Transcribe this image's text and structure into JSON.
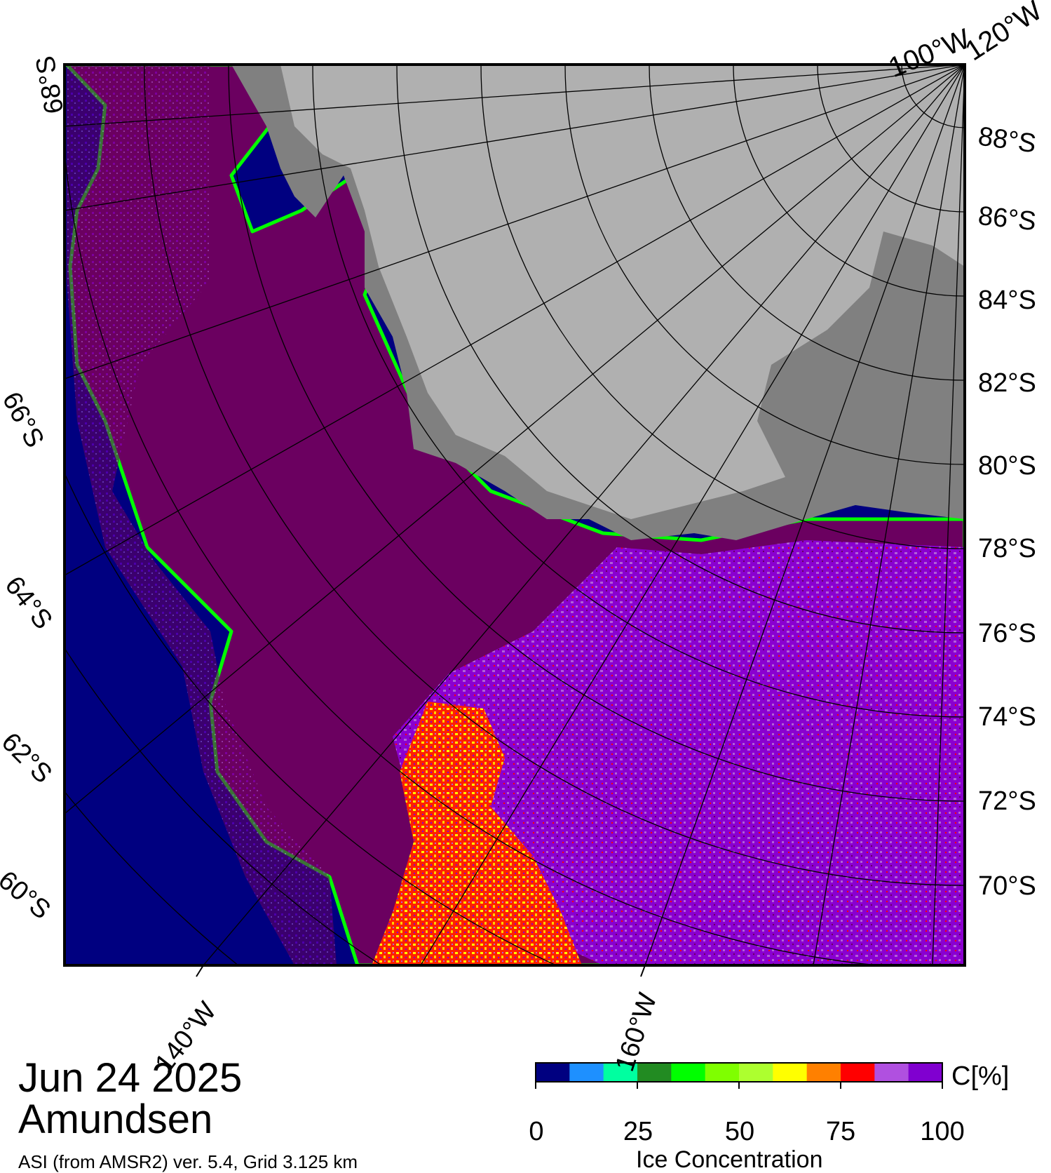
{
  "header": {
    "top_labels": [
      "100°W",
      "120°W"
    ]
  },
  "latitude_labels_right": [
    "88°S",
    "86°S",
    "84°S",
    "82°S",
    "80°S",
    "78°S",
    "76°S",
    "74°S",
    "72°S",
    "70°S"
  ],
  "latitude_labels_left": [
    "68°S",
    "66°S",
    "64°S",
    "62°S",
    "60°S"
  ],
  "longitude_labels_bottom": [
    "140°W",
    "160°W"
  ],
  "footer": {
    "date": "Jun 24 2025",
    "region": "Amundsen",
    "source": "ASI (from AMSR2) ver. 5.4,  Grid 3.125 km"
  },
  "colorbar": {
    "unit": "C[%]",
    "title": "Ice Concentration",
    "ticks": [
      "0",
      "25",
      "50",
      "75",
      "100"
    ],
    "colors": [
      "#000080",
      "#1e90ff",
      "#00ffa0",
      "#228b22",
      "#00ff00",
      "#7fff00",
      "#adff2f",
      "#ffff00",
      "#ff8000",
      "#ff0000",
      "#b050e0",
      "#8000d0"
    ]
  },
  "map_colors": {
    "ocean": "#000080",
    "ice_full": "#6b0060",
    "ice_high": "#8a00d0",
    "ice_mid": "#b060d8",
    "land_ice": "#b0b0b0",
    "ice_shelf": "#808080"
  }
}
